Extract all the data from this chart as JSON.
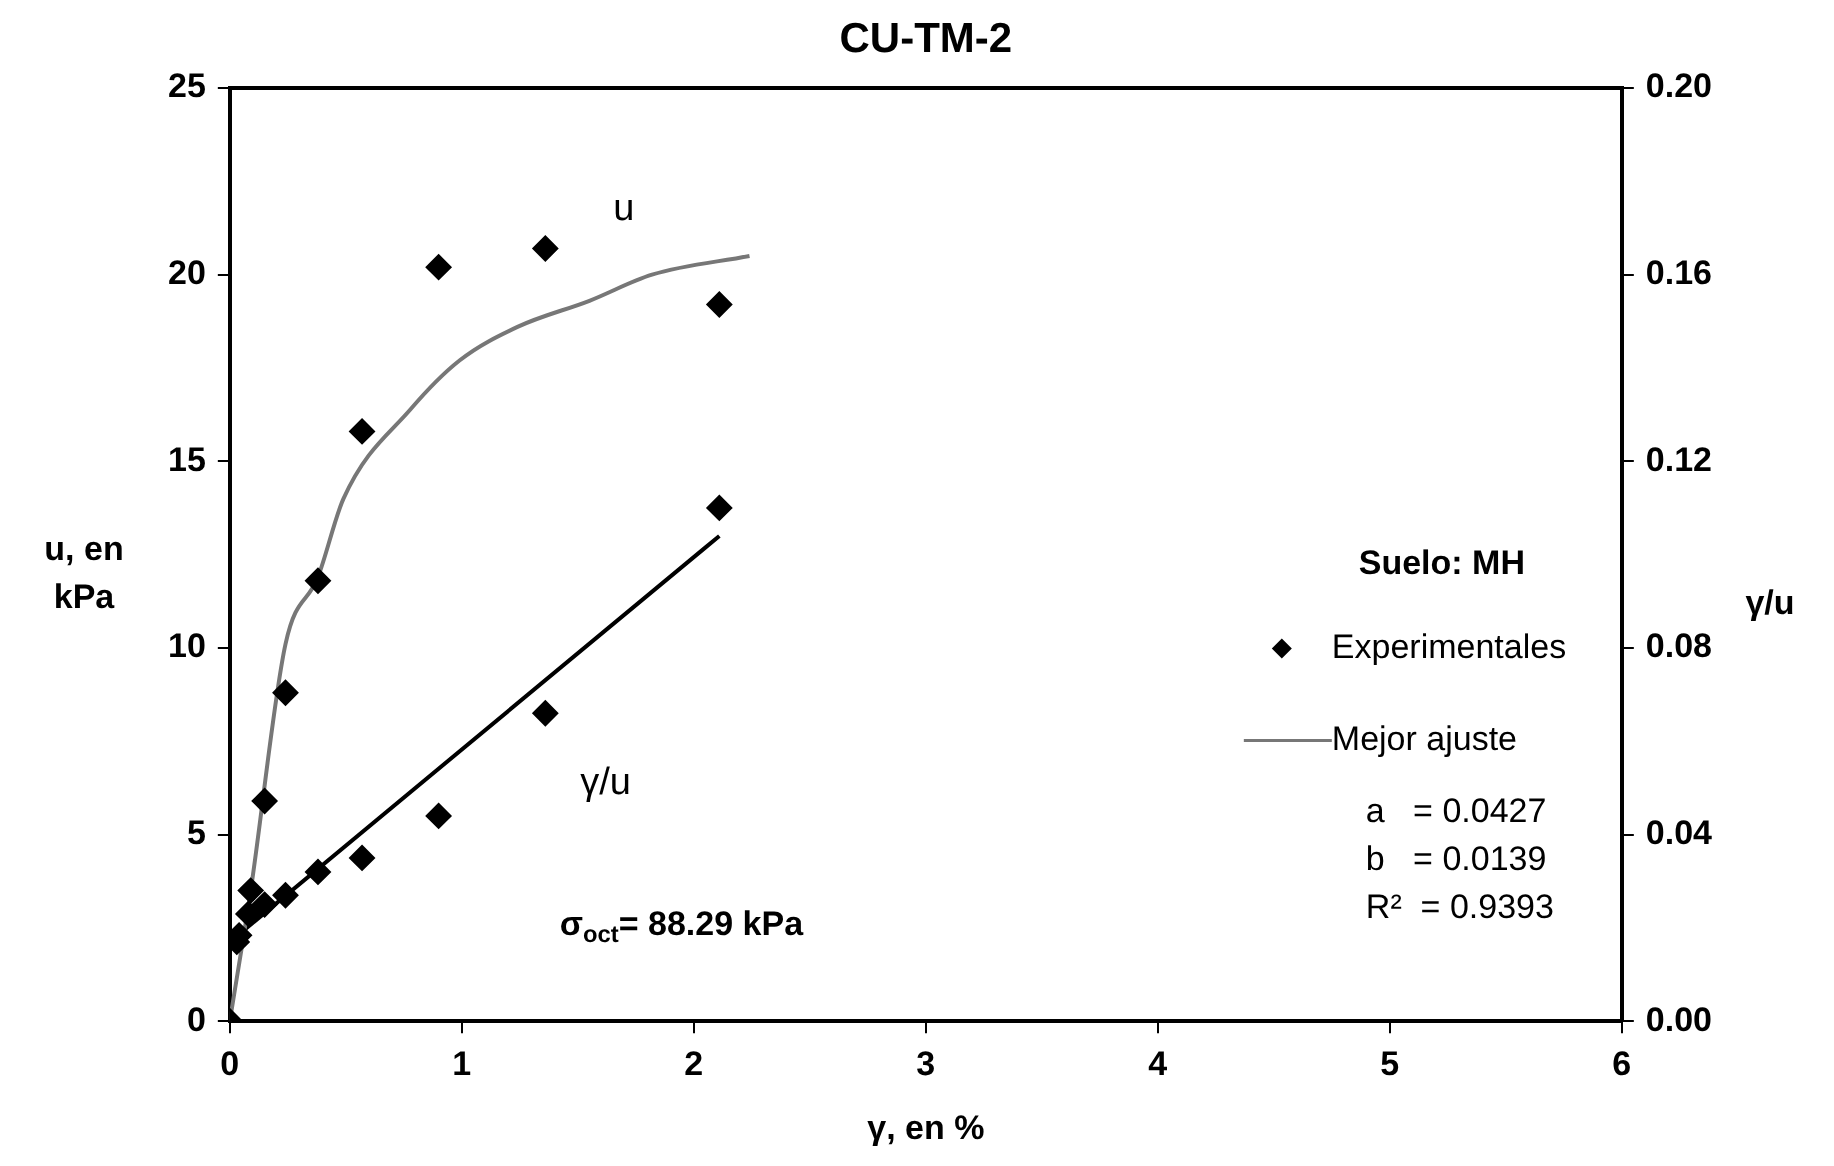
{
  "chart_data": {
    "type": "scatter",
    "title": "CU-TM-2",
    "xlabel": "γ, en %",
    "ylabel": "u, en kPa",
    "y2label": "γ/u",
    "legend_title": "Suelo: MH",
    "xlim": [
      0,
      6
    ],
    "xticks": [
      0,
      1,
      2,
      3,
      4,
      5,
      6
    ],
    "ylim": [
      0,
      25
    ],
    "yticks": [
      0,
      5,
      10,
      15,
      20,
      25
    ],
    "y2lim": [
      0,
      0.2
    ],
    "y2ticks": [
      {
        "value": 0,
        "label": "0.00"
      },
      0.04,
      0.08,
      0.12,
      0.16,
      {
        "value": 0.2,
        "label": "0.20"
      }
    ],
    "grid": false,
    "legend": "right",
    "marker": "diamond",
    "series": [
      {
        "name": "Experimentales",
        "color": "#000000",
        "x": [
          0,
          0.04,
          0.09,
          0.15,
          0.24,
          0.38,
          0.57,
          0.9,
          1.36,
          2.11
        ],
        "values": [
          0,
          2.3,
          3.5,
          5.9,
          8.8,
          11.8,
          15.8,
          20.2,
          20.7,
          19.2
        ]
      },
      {
        "axis": "y2",
        "color": "#000000",
        "x": [
          0.03,
          0.08,
          0.15,
          0.24,
          0.38,
          0.57,
          0.9,
          1.36,
          2.11
        ],
        "values": [
          0.017,
          0.023,
          0.025,
          0.027,
          0.032,
          0.035,
          0.044,
          0.066,
          0.11
        ]
      },
      {
        "name": "Mejor ajuste",
        "type": "line",
        "marker": "none",
        "color": "#777777",
        "x": [
          0,
          0.09,
          0.24,
          0.38,
          0.49,
          0.78,
          0.99,
          1.24,
          1.55,
          1.82,
          2.24
        ],
        "values": [
          0,
          3.5,
          10.1,
          11.9,
          14,
          16.4,
          17.7,
          18.6,
          19.3,
          20,
          20.5
        ]
      },
      {
        "type": "line",
        "axis": "y2",
        "marker": "none",
        "color": "#000000",
        "x": [
          0,
          2.11
        ],
        "values": [
          0.017,
          0.104
        ]
      }
    ],
    "annotations": [
      "u",
      "γ/u",
      "σ$_{oct}$= 88.29 kPa",
      "a   = 0.0427",
      "b   = 0.0139",
      "R²  = 0.9393"
    ]
  }
}
